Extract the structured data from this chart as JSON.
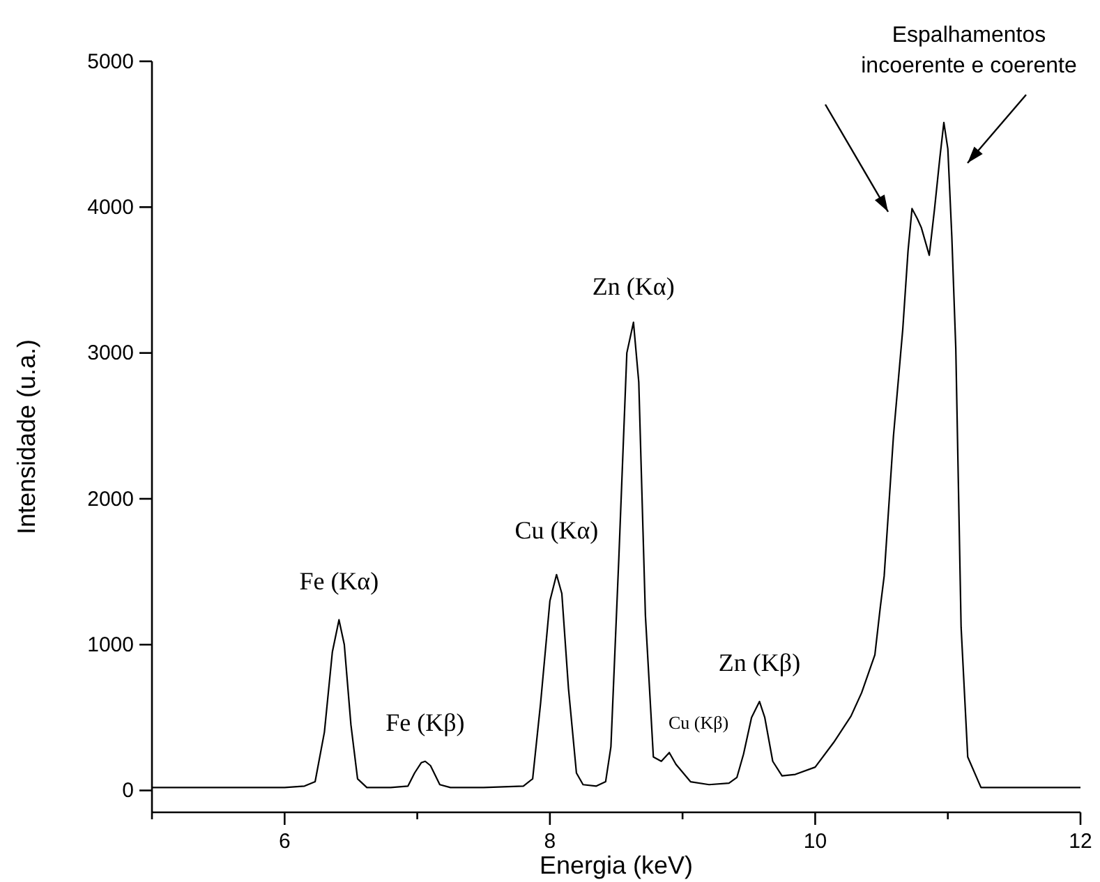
{
  "chart_data": {
    "type": "line",
    "xlabel": "Energia (keV)",
    "ylabel": "Intensidade (u.a.)",
    "xlim": [
      5,
      12
    ],
    "ylim": [
      -150,
      5000
    ],
    "xticks": [
      {
        "value": 5,
        "label": null
      },
      6,
      {
        "value": 7,
        "label": null
      },
      8,
      {
        "value": 9,
        "label": null
      },
      10,
      {
        "value": 11,
        "label": null
      },
      12
    ],
    "yticks": [
      0,
      1000,
      2000,
      3000,
      4000,
      5000
    ],
    "grid": false,
    "marker": "none",
    "line_style": "solid",
    "series": [
      {
        "color": "#000000",
        "x": [
          5.0,
          5.5,
          6.0,
          6.15,
          6.23,
          6.3,
          6.36,
          6.41,
          6.45,
          6.5,
          6.55,
          6.62,
          6.8,
          6.93,
          6.98,
          7.03,
          7.06,
          7.1,
          7.17,
          7.25,
          7.5,
          7.8,
          7.87,
          7.93,
          8.0,
          8.05,
          8.09,
          8.14,
          8.2,
          8.25,
          8.35,
          8.42,
          8.46,
          8.52,
          8.58,
          8.63,
          8.67,
          8.72,
          8.78,
          8.84,
          8.9,
          8.95,
          9.06,
          9.2,
          9.35,
          9.41,
          9.46,
          9.52,
          9.58,
          9.62,
          9.68,
          9.75,
          9.85,
          10.0,
          10.14,
          10.27,
          10.35,
          10.45,
          10.49,
          10.52,
          10.59,
          10.66,
          10.7,
          10.73,
          10.77,
          10.8,
          10.86,
          10.9,
          10.94,
          10.97,
          11.0,
          11.03,
          11.06,
          11.1,
          11.15,
          11.25,
          11.5,
          12.0
        ],
        "values": [
          20,
          20,
          20,
          30,
          60,
          400,
          950,
          1170,
          1000,
          450,
          80,
          20,
          20,
          30,
          120,
          190,
          200,
          170,
          40,
          20,
          20,
          30,
          80,
          600,
          1300,
          1480,
          1350,
          700,
          120,
          40,
          30,
          60,
          300,
          1600,
          3000,
          3210,
          2800,
          1200,
          230,
          200,
          260,
          180,
          60,
          40,
          50,
          90,
          250,
          500,
          610,
          500,
          200,
          100,
          110,
          160,
          330,
          510,
          670,
          930,
          1250,
          1470,
          2430,
          3160,
          3700,
          3990,
          3920,
          3860,
          3670,
          3990,
          4340,
          4580,
          4400,
          3800,
          3030,
          1120,
          230,
          20,
          20,
          20
        ]
      }
    ],
    "annotations": [
      {
        "text": "Fe (Kα)",
        "x": 6.41,
        "y": 1170
      },
      {
        "text": "Fe (Kβ)",
        "x": 7.06,
        "y": 200
      },
      {
        "text": "Cu (Kα)",
        "x": 8.05,
        "y": 1480
      },
      {
        "text": "Zn (Kα)",
        "x": 8.63,
        "y": 3210
      },
      {
        "text": "Cu (Kβ)",
        "x": 8.9,
        "y": 260
      },
      {
        "text": "Zn (Kβ)",
        "x": 9.58,
        "y": 610
      },
      "Espalhamentos\nincoerente e coerente"
    ]
  }
}
